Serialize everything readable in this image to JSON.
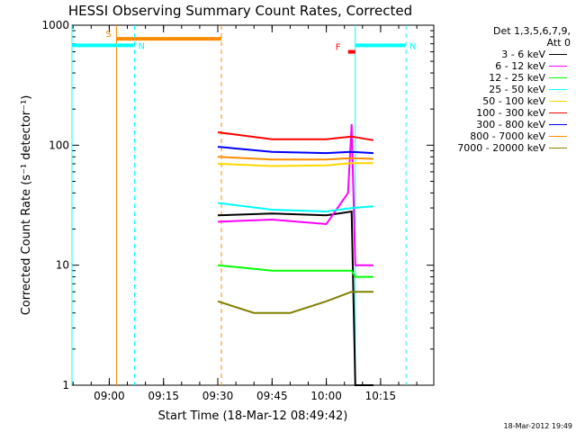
{
  "window": {
    "title": "HESSI Observing Summary Count Rates, Corrected"
  },
  "footer": {
    "timestamp": "18-Mar-2012 19:49"
  },
  "legend": {
    "header1": "Det 1,3,5,6,7,9,",
    "header2": "Att 0",
    "items": [
      {
        "label": "3 - 6 keV",
        "color": "#000000"
      },
      {
        "label": "6 - 12 keV",
        "color": "#ff00ff"
      },
      {
        "label": "12 - 25 keV",
        "color": "#00ff00"
      },
      {
        "label": "25 - 50 keV",
        "color": "#00ffff"
      },
      {
        "label": "50 - 100 keV",
        "color": "#ffd700"
      },
      {
        "label": "100 - 300 keV",
        "color": "#ff0000"
      },
      {
        "label": "300 - 800 keV",
        "color": "#0000ff"
      },
      {
        "label": "800 - 7000 keV",
        "color": "#ff8c00"
      },
      {
        "label": "7000 - 20000 keV",
        "color": "#808000"
      }
    ]
  },
  "chart_data": {
    "type": "line",
    "title": "HESSI Observing Summary Count Rates, Corrected",
    "xlabel": "Start Time (18-Mar-12 08:49:42)",
    "ylabel": "Corrected Count Rate (s⁻¹ detector⁻¹)",
    "yscale": "log",
    "ylim": [
      1,
      1000
    ],
    "xlim": [
      "08:49:42",
      "10:29:42"
    ],
    "x_ticks": [
      "09:00",
      "09:15",
      "09:30",
      "09:45",
      "10:00",
      "10:15"
    ],
    "y_ticks": [
      "1",
      "10",
      "100",
      "1000"
    ],
    "grid": false,
    "legend_position": "right",
    "series": [
      {
        "name": "3 - 6 keV",
        "color": "#000000",
        "x": [
          "09:30",
          "09:45",
          "10:00",
          "10:07",
          "10:08",
          "10:13"
        ],
        "values": [
          26,
          27,
          26,
          28,
          1,
          1
        ]
      },
      {
        "name": "6 - 12 keV",
        "color": "#ff00ff",
        "x": [
          "09:30",
          "09:45",
          "10:00",
          "10:06",
          "10:07",
          "10:08",
          "10:13"
        ],
        "values": [
          23,
          24,
          22,
          40,
          150,
          10,
          10
        ]
      },
      {
        "name": "12 - 25 keV",
        "color": "#00ff00",
        "x": [
          "09:30",
          "09:45",
          "10:00",
          "10:07",
          "10:08",
          "10:13"
        ],
        "values": [
          10,
          9,
          9,
          9,
          8,
          8
        ]
      },
      {
        "name": "25 - 50 keV",
        "color": "#00ffff",
        "x": [
          "09:30",
          "09:45",
          "10:00",
          "10:07",
          "10:13"
        ],
        "values": [
          33,
          29,
          28,
          30,
          31
        ]
      },
      {
        "name": "50 - 100 keV",
        "color": "#ffd700",
        "x": [
          "09:30",
          "09:45",
          "10:00",
          "10:07",
          "10:13"
        ],
        "values": [
          70,
          67,
          68,
          71,
          71
        ]
      },
      {
        "name": "100 - 300 keV",
        "color": "#ff0000",
        "x": [
          "09:30",
          "09:45",
          "10:00",
          "10:07",
          "10:13"
        ],
        "values": [
          128,
          112,
          112,
          118,
          110
        ]
      },
      {
        "name": "300 - 800 keV",
        "color": "#0000ff",
        "x": [
          "09:30",
          "09:45",
          "10:00",
          "10:07",
          "10:13"
        ],
        "values": [
          97,
          88,
          86,
          88,
          86
        ]
      },
      {
        "name": "800 - 7000 keV",
        "color": "#ff8c00",
        "x": [
          "09:30",
          "09:45",
          "10:00",
          "10:07",
          "10:13"
        ],
        "values": [
          80,
          76,
          76,
          78,
          77
        ]
      },
      {
        "name": "7000 - 20000 keV",
        "color": "#808000",
        "x": [
          "09:30",
          "09:40",
          "09:50",
          "10:00",
          "10:07",
          "10:13"
        ],
        "values": [
          5,
          4,
          4,
          5,
          6,
          6
        ]
      }
    ],
    "annotations": [
      {
        "label": "S",
        "color": "#ff8c00",
        "x_start": "09:02",
        "x_end": "09:31",
        "value": 770
      },
      {
        "label": "N",
        "color": "#00ffff",
        "x_start": "08:49:42",
        "x_end": "09:07",
        "value": 680
      },
      {
        "label": "N",
        "color": "#00ffff",
        "x_start": "10:08",
        "x_end": "10:22",
        "value": 680
      },
      {
        "label": "F",
        "color": "#ff0000",
        "x_start": "10:06",
        "x_end": "10:08",
        "value": 600
      }
    ]
  }
}
